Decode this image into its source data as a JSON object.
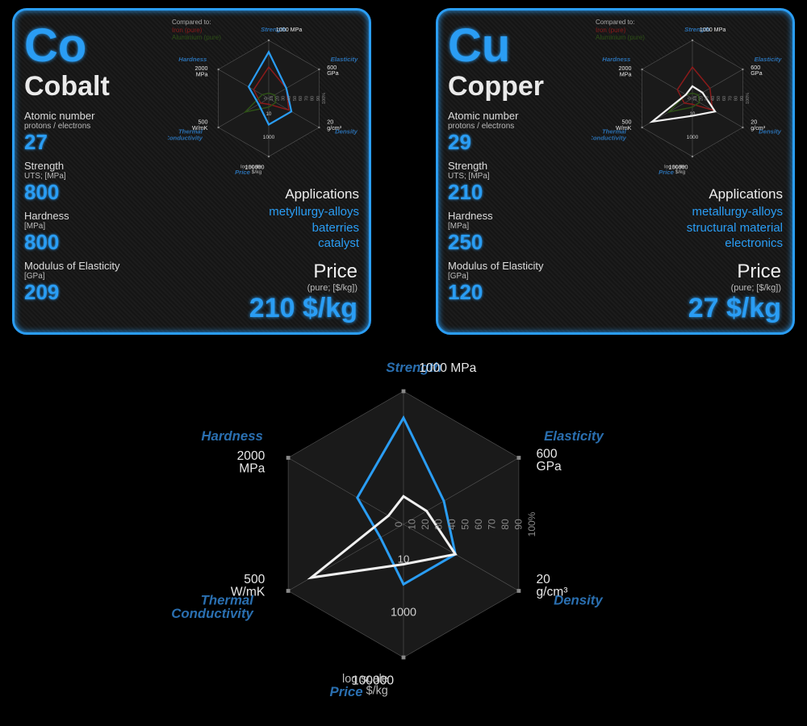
{
  "background_color": "#000000",
  "accent_color": "#2a9df4",
  "compare_legend": {
    "header": "Compared to:",
    "ref1": "Iron (pure)",
    "ref2": "Aluminium (pure)"
  },
  "radar_axes": [
    {
      "name": "Strength",
      "max_label": "1000 MPa"
    },
    {
      "name": "Elasticity",
      "max_label": "600\nGPa"
    },
    {
      "name": "Density",
      "max_label": "20\ng/cm³"
    },
    {
      "name": "Price",
      "max_label": "100000",
      "sub_label": "log scale\n$/kg"
    },
    {
      "name": "Thermal\nConductivity",
      "max_label": "500\nW/mK"
    },
    {
      "name": "Hardness",
      "max_label": "2000\nMPa"
    }
  ],
  "radar_rings_pct": [
    10,
    20,
    30,
    40,
    50,
    60,
    70,
    80,
    90,
    100
  ],
  "radar_scale_labels": [
    "0",
    "10",
    "20",
    "30",
    "40",
    "50",
    "60",
    "70",
    "80",
    "90",
    "100%"
  ],
  "radar_tick_bottom": "1000",
  "radar_tick_inner_bottom": "10",
  "radar_colors": {
    "grid": "#555555",
    "grid_fill_odd": "#242424",
    "grid_fill_even": "#1a1a1a",
    "axis_label": "#2a6fb0",
    "max_label": "#e8e8e8"
  },
  "elements": [
    {
      "symbol": "Co",
      "name": "Cobalt",
      "props": [
        {
          "label": "Atomic number",
          "sub": "protons / electrons",
          "value": "27"
        },
        {
          "label": "Strength",
          "sub": "UTS; [MPa]",
          "value": "800"
        },
        {
          "label": "Hardness",
          "sub": "[MPa]",
          "value": "800"
        },
        {
          "label": "Modulus of Elasticity",
          "sub": "[GPa]",
          "value": "209"
        }
      ],
      "applications_header": "Applications",
      "applications": [
        "metyllurgy-alloys",
        "baterries",
        "catalyst"
      ],
      "price_header": "Price",
      "price_sub": "(pure; [$/kg])",
      "price_value": "210 $/kg",
      "radar_series": {
        "color": "#2a9df4",
        "values_pct": [
          80,
          35,
          45,
          45,
          20,
          40
        ]
      },
      "ref_iron": {
        "color": "#8b1a1a",
        "values_pct": [
          54,
          35,
          40,
          10,
          16,
          30
        ]
      },
      "ref_alum": {
        "color": "#2d5016",
        "values_pct": [
          9,
          12,
          14,
          15,
          47,
          13
        ]
      }
    },
    {
      "symbol": "Cu",
      "name": "Copper",
      "props": [
        {
          "label": "Atomic number",
          "sub": "protons / electrons",
          "value": "29"
        },
        {
          "label": "Strength",
          "sub": "UTS; [MPa]",
          "value": "210"
        },
        {
          "label": "Hardness",
          "sub": "[MPa]",
          "value": "250"
        },
        {
          "label": "Modulus of Elasticity",
          "sub": "[GPa]",
          "value": "120"
        }
      ],
      "applications_header": "Applications",
      "applications": [
        "metallurgy-alloys",
        "structural material",
        "electronics"
      ],
      "price_header": "Price",
      "price_sub": "(pure; [$/kg])",
      "price_value": "27 $/kg",
      "radar_series": {
        "color": "#f0f0f0",
        "values_pct": [
          21,
          20,
          45,
          30,
          80,
          13
        ]
      },
      "ref_iron": {
        "color": "#8b1a1a",
        "values_pct": [
          54,
          35,
          40,
          10,
          16,
          30
        ]
      },
      "ref_alum": {
        "color": "#2d5016",
        "values_pct": [
          9,
          12,
          14,
          15,
          47,
          13
        ]
      }
    }
  ],
  "big_radar": {
    "series": [
      {
        "color": "#2a9df4",
        "width": 3,
        "values_pct": [
          80,
          35,
          45,
          45,
          20,
          40
        ]
      },
      {
        "color": "#f0f0f0",
        "width": 3,
        "values_pct": [
          21,
          20,
          45,
          30,
          80,
          13
        ]
      }
    ]
  }
}
